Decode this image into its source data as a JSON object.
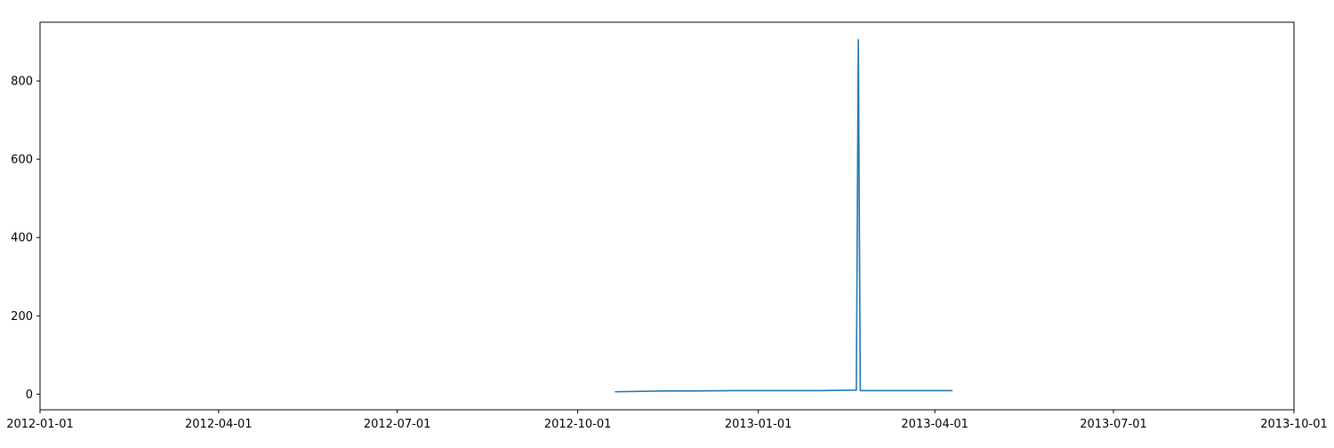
{
  "chart_data": {
    "type": "line",
    "title": "",
    "xlabel": "",
    "ylabel": "",
    "x_axis_type": "date",
    "xlim": [
      "2012-01-01",
      "2013-10-01"
    ],
    "ylim": [
      -40,
      950
    ],
    "x_ticks": [
      "2012-01-01",
      "2012-04-01",
      "2012-07-01",
      "2012-10-01",
      "2013-01-01",
      "2013-04-01",
      "2013-07-01",
      "2013-10-01"
    ],
    "y_ticks": [
      0,
      200,
      400,
      600,
      800
    ],
    "grid": false,
    "legend": "none",
    "series": [
      {
        "color": "#1f77b4",
        "x": [
          "2012-10-20",
          "2012-11-15",
          "2012-12-01",
          "2012-12-20",
          "2013-01-10",
          "2013-02-01",
          "2013-02-20",
          "2013-02-21",
          "2013-02-22",
          "2013-03-01",
          "2013-03-20",
          "2013-04-10"
        ],
        "y": [
          6,
          8,
          8,
          9,
          9,
          9,
          10,
          905,
          9,
          9,
          9,
          9
        ]
      }
    ]
  }
}
